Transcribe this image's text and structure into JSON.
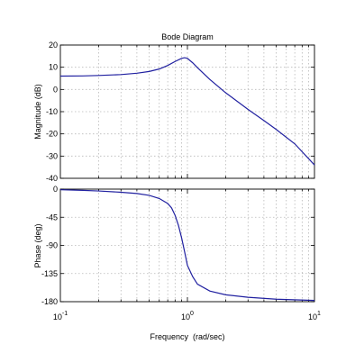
{
  "chart_data": [
    {
      "type": "line",
      "title": "Bode Diagram",
      "xlabel": "",
      "ylabel": "Magnitude (dB)",
      "xscale": "log",
      "xlim": [
        0.1,
        10
      ],
      "ylim": [
        -40,
        20
      ],
      "yticks": [
        "20",
        "10",
        "0",
        "-10",
        "-20",
        "-30",
        "-40"
      ],
      "grid": true,
      "series": [
        {
          "color": "#2020a0",
          "x": [
            0.1,
            0.15,
            0.2,
            0.3,
            0.4,
            0.5,
            0.6,
            0.7,
            0.8,
            0.9,
            0.95,
            1.0,
            1.1,
            1.2,
            1.5,
            2,
            3,
            4,
            5,
            7,
            10
          ],
          "y": [
            6.0,
            6.1,
            6.3,
            6.7,
            7.3,
            8.1,
            9.2,
            10.8,
            12.6,
            14.0,
            14.3,
            14.0,
            12.0,
            9.8,
            4.5,
            -1.5,
            -9.0,
            -14.0,
            -18.0,
            -24.5,
            -34.0
          ]
        }
      ]
    },
    {
      "type": "line",
      "title": "",
      "xlabel": "Frequency  (rad/sec)",
      "ylabel": "Phase (deg)",
      "xscale": "log",
      "xlim": [
        0.1,
        10
      ],
      "ylim": [
        -180,
        0
      ],
      "yticks": [
        "0",
        "-45",
        "-90",
        "-135",
        "-180"
      ],
      "xtick_base": "10",
      "xtick_exps": [
        "-1",
        "0",
        "1"
      ],
      "grid": true,
      "series": [
        {
          "color": "#2020a0",
          "x": [
            0.1,
            0.15,
            0.2,
            0.3,
            0.4,
            0.5,
            0.6,
            0.7,
            0.75,
            0.8,
            0.85,
            0.9,
            0.95,
            1.0,
            1.1,
            1.2,
            1.5,
            2,
            3,
            5,
            10
          ],
          "y": [
            -1,
            -2,
            -3,
            -5,
            -7,
            -10,
            -15,
            -23,
            -30,
            -42,
            -58,
            -78,
            -100,
            -122,
            -140,
            -152,
            -163,
            -169,
            -173,
            -176,
            -178
          ]
        }
      ]
    }
  ]
}
